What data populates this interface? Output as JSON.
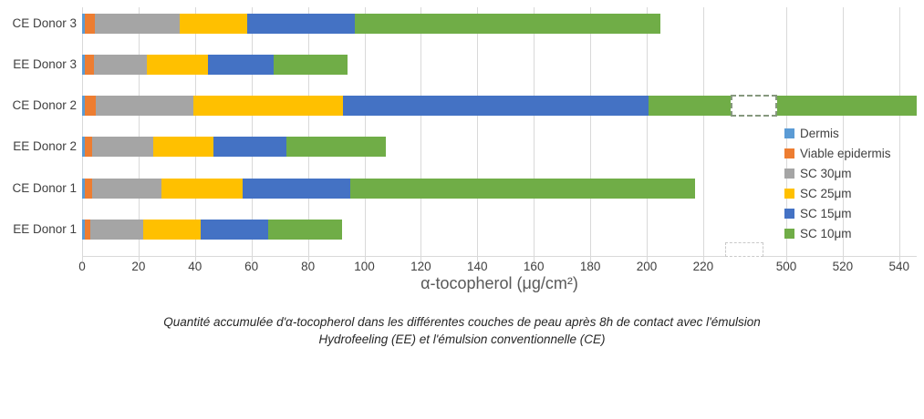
{
  "chart_data": {
    "type": "bar",
    "orientation": "horizontal",
    "stacked": true,
    "xlabel": "α-tocopherol (μg/cm²)",
    "categories": [
      "CE Donor 3",
      "EE Donor 3",
      "CE Donor 2",
      "EE Donor 2",
      "CE Donor 1",
      "EE Donor 1"
    ],
    "series": [
      {
        "name": "Dermis",
        "color": "#5B9BD5",
        "values": [
          1,
          1,
          1,
          1,
          1,
          1
        ]
      },
      {
        "name": "Viable epidermis",
        "color": "#ED7D31",
        "values": [
          3.5,
          3.2,
          4,
          2.5,
          2.5,
          2
        ]
      },
      {
        "name": "SC 30μm",
        "color": "#A5A5A5",
        "values": [
          30,
          18.7,
          34.5,
          21.7,
          24.5,
          18.6
        ]
      },
      {
        "name": "SC 25μm",
        "color": "#FFC000",
        "values": [
          24,
          21.8,
          53,
          21.3,
          29,
          20.4
        ]
      },
      {
        "name": "SC 15μm",
        "color": "#4472C4",
        "values": [
          38,
          23.3,
          108,
          25.8,
          38,
          24
        ]
      },
      {
        "name": "SC 10μm",
        "color": "#70AD47",
        "values": [
          108.5,
          26,
          346.5,
          35.4,
          122,
          26
        ]
      }
    ],
    "totals": [
      205,
      94,
      547,
      107.7,
      217,
      92
    ],
    "x_ticks": [
      0,
      20,
      40,
      60,
      80,
      100,
      120,
      140,
      160,
      180,
      200,
      220,
      500,
      520,
      540
    ],
    "axis_break": {
      "between": [
        220,
        500
      ],
      "bar_with_break": "CE Donor 2"
    },
    "grid": true,
    "legend_position": "right",
    "xlim_left": 0,
    "xlim_right_visible": 546
  },
  "caption": {
    "line1": "Quantité accumulée d'α-tocopherol dans les différentes couches de peau après 8h de contact avec l'émulsion",
    "line2": "Hydrofeeling (EE) et l'émulsion conventionnelle (CE)"
  },
  "colors": {
    "gridline": "#D9D9D9",
    "tick_label": "#404040",
    "axis_title": "#595959",
    "caption_text": "#262626",
    "background": "#ffffff"
  }
}
